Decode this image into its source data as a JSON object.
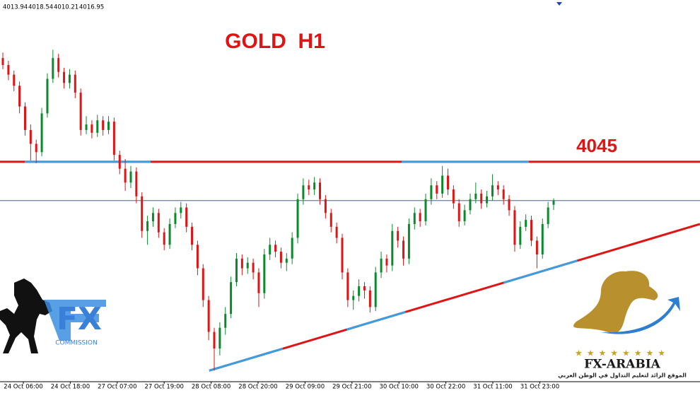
{
  "chart_data": {
    "type": "candlestick",
    "title": "GOLD  H1",
    "up_color": "#0b8a2c",
    "down_color": "#e01414",
    "ylim": [
      3886,
      4162
    ],
    "level": 4045,
    "level_color": "#e01414",
    "trendline": {
      "from": [
        37.1,
        3894
      ],
      "to": [
        125.3,
        4000
      ],
      "color": "#e01414",
      "highlight": "#3a9ee0"
    },
    "x_labels": [
      "24 Oct 06:00",
      "24 Oct 18:00",
      "27 Oct 07:00",
      "27 Oct 19:00",
      "28 Oct 08:00",
      "28 Oct 20:00",
      "29 Oct 09:00",
      "29 Oct 21:00",
      "30 Oct 10:00",
      "30 Oct 22:00",
      "31 Oct 11:00",
      "31 Oct 23:00"
    ],
    "ohlc": [
      [
        4120,
        4124,
        4112,
        4115
      ],
      [
        4115,
        4118,
        4104,
        4108
      ],
      [
        4108,
        4111,
        4096,
        4100
      ],
      [
        4100,
        4103,
        4080,
        4085
      ],
      [
        4085,
        4088,
        4064,
        4068
      ],
      [
        4068,
        4072,
        4046,
        4058
      ],
      [
        4058,
        4061,
        4044,
        4052
      ],
      [
        4052,
        4084,
        4049,
        4080
      ],
      [
        4080,
        4109,
        4077,
        4105
      ],
      [
        4105,
        4126,
        4102,
        4120
      ],
      [
        4120,
        4123,
        4106,
        4110
      ],
      [
        4110,
        4113,
        4098,
        4102
      ],
      [
        4102,
        4112,
        4098,
        4108
      ],
      [
        4108,
        4111,
        4091,
        4095
      ],
      [
        4095,
        4098,
        4064,
        4068
      ],
      [
        4068,
        4078,
        4065,
        4072
      ],
      [
        4072,
        4075,
        4062,
        4066
      ],
      [
        4066,
        4079,
        4063,
        4075
      ],
      [
        4075,
        4078,
        4064,
        4068
      ],
      [
        4068,
        4078,
        4065,
        4074
      ],
      [
        4074,
        4077,
        4046,
        4050
      ],
      [
        4050,
        4053,
        4036,
        4040
      ],
      [
        4040,
        4047,
        4024,
        4030
      ],
      [
        4030,
        4042,
        4026,
        4038
      ],
      [
        4038,
        4041,
        4015,
        4020
      ],
      [
        4020,
        4023,
        3990,
        3995
      ],
      [
        3995,
        4006,
        3985,
        4002
      ],
      [
        4002,
        4012,
        3998,
        4008
      ],
      [
        4008,
        4011,
        3990,
        3994
      ],
      [
        3994,
        3997,
        3981,
        3985
      ],
      [
        3985,
        4004,
        3982,
        4000
      ],
      [
        4000,
        4012,
        3997,
        4008
      ],
      [
        4008,
        4016,
        4004,
        4012
      ],
      [
        4012,
        4015,
        3994,
        3998
      ],
      [
        3998,
        4001,
        3981,
        3985
      ],
      [
        3985,
        3988,
        3963,
        3968
      ],
      [
        3968,
        3971,
        3940,
        3945
      ],
      [
        3945,
        3948,
        3916,
        3922
      ],
      [
        3922,
        3925,
        3894,
        3910
      ],
      [
        3910,
        3929,
        3905,
        3925
      ],
      [
        3925,
        3940,
        3920,
        3935
      ],
      [
        3935,
        3962,
        3932,
        3958
      ],
      [
        3958,
        3979,
        3955,
        3975
      ],
      [
        3975,
        3978,
        3963,
        3968
      ],
      [
        3968,
        3976,
        3964,
        3972
      ],
      [
        3972,
        3975,
        3960,
        3965
      ],
      [
        3965,
        3968,
        3940,
        3950
      ],
      [
        3950,
        3982,
        3946,
        3978
      ],
      [
        3978,
        3990,
        3974,
        3985
      ],
      [
        3985,
        3988,
        3976,
        3980
      ],
      [
        3980,
        3983,
        3968,
        3972
      ],
      [
        3972,
        3979,
        3966,
        3975
      ],
      [
        3975,
        3994,
        3971,
        3990
      ],
      [
        3990,
        4022,
        3986,
        4018
      ],
      [
        4018,
        4033,
        4014,
        4028
      ],
      [
        4028,
        4032,
        4021,
        4025
      ],
      [
        4025,
        4034,
        4021,
        4030
      ],
      [
        4030,
        4033,
        4014,
        4018
      ],
      [
        4018,
        4021,
        4004,
        4008
      ],
      [
        4008,
        4011,
        3994,
        3998
      ],
      [
        3998,
        4001,
        3986,
        3990
      ],
      [
        3990,
        3993,
        3960,
        3965
      ],
      [
        3965,
        3968,
        3940,
        3945
      ],
      [
        3945,
        3952,
        3938,
        3948
      ],
      [
        3948,
        3960,
        3944,
        3955
      ],
      [
        3955,
        3958,
        3946,
        3952
      ],
      [
        3952,
        3955,
        3936,
        3940
      ],
      [
        3940,
        3969,
        3937,
        3965
      ],
      [
        3965,
        3980,
        3961,
        3975
      ],
      [
        3975,
        3978,
        3965,
        3970
      ],
      [
        3970,
        4000,
        3966,
        3995
      ],
      [
        3995,
        3998,
        3983,
        3988
      ],
      [
        3988,
        3991,
        3970,
        3975
      ],
      [
        3975,
        4004,
        3971,
        4000
      ],
      [
        4000,
        4012,
        3996,
        4008
      ],
      [
        4008,
        4011,
        3998,
        4002
      ],
      [
        4002,
        4022,
        3999,
        4018
      ],
      [
        4018,
        4033,
        4014,
        4028
      ],
      [
        4028,
        4031,
        4018,
        4022
      ],
      [
        4022,
        4042,
        4019,
        4035
      ],
      [
        4035,
        4040,
        4021,
        4025
      ],
      [
        4025,
        4028,
        4011,
        4015
      ],
      [
        4015,
        4018,
        3998,
        4002
      ],
      [
        4002,
        4014,
        3999,
        4010
      ],
      [
        4010,
        4022,
        4007,
        4018
      ],
      [
        4018,
        4030,
        4015,
        4022
      ],
      [
        4022,
        4025,
        4011,
        4015
      ],
      [
        4015,
        4024,
        4012,
        4020
      ],
      [
        4020,
        4036,
        4017,
        4028
      ],
      [
        4028,
        4031,
        4021,
        4025
      ],
      [
        4025,
        4028,
        4014,
        4018
      ],
      [
        4018,
        4021,
        4006,
        4010
      ],
      [
        4010,
        4013,
        3980,
        3985
      ],
      [
        3985,
        4002,
        3982,
        3998
      ],
      [
        3998,
        4007,
        3995,
        4003
      ],
      [
        4003,
        4006,
        3984,
        3988
      ],
      [
        3988,
        3991,
        3968,
        3978
      ],
      [
        3978,
        4004,
        3975,
        4000
      ],
      [
        4000,
        4016,
        3997,
        4012
      ],
      [
        4013.94,
        4018.54,
        4010.21,
        4016.95
      ]
    ]
  },
  "logos": {
    "left": {
      "mark": "FX",
      "name": "COMMISSION"
    },
    "right": {
      "name": "FX-ARABIA",
      "tagline": "الموقع الرائد لتعليم التداول في الوطن العربي"
    }
  }
}
